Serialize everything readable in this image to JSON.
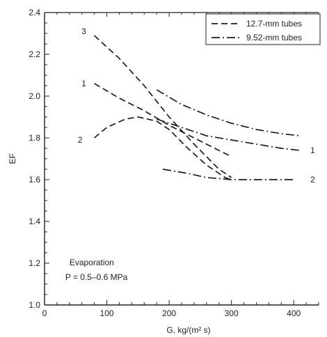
{
  "chart_data": {
    "type": "line",
    "xlabel": "G, kg/(m² s)",
    "ylabel": "EF",
    "xlim": [
      0,
      440
    ],
    "ylim": [
      1.0,
      2.4
    ],
    "x_ticks": [
      {
        "value": 0,
        "label": "0"
      },
      {
        "value": 100,
        "label": "100"
      },
      {
        "value": 200,
        "label": "200"
      },
      {
        "value": 300,
        "label": "300"
      },
      {
        "value": 400,
        "label": "400"
      }
    ],
    "y_ticks": [
      {
        "value": 1.0,
        "label": "1.0"
      },
      {
        "value": 1.2,
        "label": "1.2"
      },
      {
        "value": 1.4,
        "label": "1.4"
      },
      {
        "value": 1.6,
        "label": "1.6"
      },
      {
        "value": 1.8,
        "label": "1.8"
      },
      {
        "value": 2.0,
        "label": "2.0"
      },
      {
        "value": 2.2,
        "label": "2.2"
      },
      {
        "value": 2.4,
        "label": "2.4"
      }
    ],
    "legend": {
      "position": "top-right",
      "entries": [
        {
          "label": "12.7-mm tubes",
          "style": "dashed"
        },
        {
          "label": "9.52-mm tubes",
          "style": "dashdot"
        }
      ]
    },
    "series": [
      {
        "tube": "12.7-mm tubes",
        "curve_label": "3",
        "style": "dashed",
        "label_at": [
          78,
          2.31
        ],
        "points": [
          [
            80,
            2.29
          ],
          [
            120,
            2.18
          ],
          [
            160,
            2.05
          ],
          [
            200,
            1.9
          ],
          [
            240,
            1.77
          ],
          [
            280,
            1.65
          ],
          [
            300,
            1.61
          ]
        ]
      },
      {
        "tube": "12.7-mm tubes",
        "curve_label": "1",
        "style": "dashed",
        "label_at": [
          78,
          2.06
        ],
        "points": [
          [
            80,
            2.06
          ],
          [
            120,
            1.99
          ],
          [
            160,
            1.93
          ],
          [
            200,
            1.86
          ],
          [
            240,
            1.8
          ],
          [
            280,
            1.74
          ],
          [
            300,
            1.71
          ]
        ]
      },
      {
        "tube": "12.7-mm tubes",
        "curve_label": "2",
        "style": "dashed",
        "label_at": [
          72,
          1.79
        ],
        "points": [
          [
            80,
            1.8
          ],
          [
            100,
            1.85
          ],
          [
            130,
            1.89
          ],
          [
            150,
            1.9
          ],
          [
            180,
            1.88
          ],
          [
            200,
            1.84
          ],
          [
            230,
            1.75
          ],
          [
            260,
            1.67
          ],
          [
            290,
            1.61
          ],
          [
            300,
            1.6
          ]
        ]
      },
      {
        "tube": "9.52-mm tubes",
        "curve_label": "",
        "style": "dashdot",
        "label_at": null,
        "points": [
          [
            180,
            2.03
          ],
          [
            220,
            1.96
          ],
          [
            260,
            1.91
          ],
          [
            300,
            1.87
          ],
          [
            340,
            1.84
          ],
          [
            380,
            1.82
          ],
          [
            410,
            1.81
          ]
        ]
      },
      {
        "tube": "9.52-mm tubes",
        "curve_label": "1",
        "style": "dashdot",
        "label_at": [
          420,
          1.74
        ],
        "points": [
          [
            180,
            1.89
          ],
          [
            220,
            1.85
          ],
          [
            260,
            1.81
          ],
          [
            300,
            1.79
          ],
          [
            340,
            1.77
          ],
          [
            380,
            1.75
          ],
          [
            410,
            1.74
          ]
        ]
      },
      {
        "tube": "9.52-mm tubes",
        "curve_label": "2",
        "style": "dashdot",
        "label_at": [
          420,
          1.6
        ],
        "points": [
          [
            190,
            1.65
          ],
          [
            230,
            1.63
          ],
          [
            260,
            1.61
          ],
          [
            300,
            1.6
          ],
          [
            340,
            1.6
          ],
          [
            380,
            1.6
          ],
          [
            400,
            1.6
          ]
        ]
      }
    ],
    "annotations": [
      {
        "text": "Evaporation",
        "x": 40,
        "y": 1.19
      },
      {
        "text": "P = 0.5–0.6 MPa",
        "x": 40,
        "y": 1.12
      }
    ],
    "grid": false
  }
}
